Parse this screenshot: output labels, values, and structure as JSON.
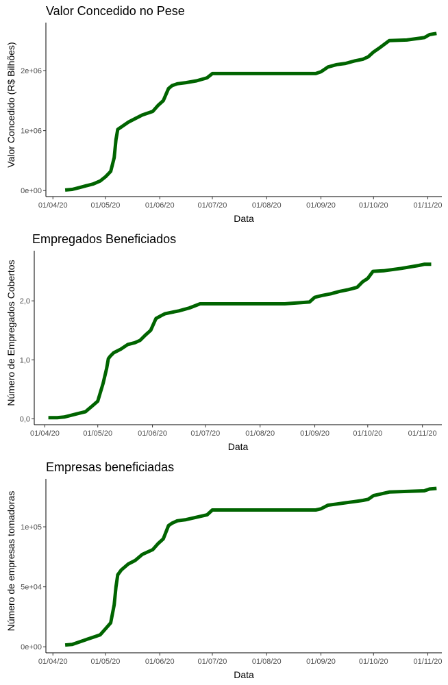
{
  "colors": {
    "line": "#006400",
    "axis": "#000000",
    "tick_text": "#4d4d4d"
  },
  "chart_data": [
    {
      "type": "line",
      "title": "Valor Concedido no Pese",
      "xlabel": "Data",
      "ylabel": "Valor Concedido (R$ Bilhões)",
      "xticks": [
        "01/04/20",
        "01/05/20",
        "01/06/20",
        "01/07/20",
        "01/08/20",
        "01/09/20",
        "01/10/20",
        "01/11/20"
      ],
      "xlim": [
        "2020-03-28",
        "2020-11-09"
      ],
      "yticks": [
        {
          "value": 0,
          "label": "0e+00"
        },
        {
          "value": 1000000,
          "label": "1e+06"
        },
        {
          "value": 2000000,
          "label": "2e+06"
        }
      ],
      "ylim": [
        -100000,
        2800000
      ],
      "grid": false,
      "series": [
        {
          "color": "#006400",
          "x": [
            "2020-04-08",
            "2020-04-12",
            "2020-04-16",
            "2020-04-20",
            "2020-04-24",
            "2020-04-28",
            "2020-05-01",
            "2020-05-04",
            "2020-05-06",
            "2020-05-07",
            "2020-05-08",
            "2020-05-10",
            "2020-05-14",
            "2020-05-18",
            "2020-05-22",
            "2020-05-25",
            "2020-05-28",
            "2020-05-31",
            "2020-06-03",
            "2020-06-06",
            "2020-06-08",
            "2020-06-11",
            "2020-06-16",
            "2020-06-22",
            "2020-06-28",
            "2020-07-01",
            "2020-07-15",
            "2020-08-01",
            "2020-08-15",
            "2020-08-29",
            "2020-09-01",
            "2020-09-05",
            "2020-09-10",
            "2020-09-15",
            "2020-09-20",
            "2020-09-25",
            "2020-09-28",
            "2020-10-01",
            "2020-10-04",
            "2020-10-10",
            "2020-10-20",
            "2020-10-30",
            "2020-11-02",
            "2020-11-06"
          ],
          "y": [
            10000,
            20000,
            50000,
            80000,
            110000,
            160000,
            230000,
            320000,
            550000,
            850000,
            1020000,
            1060000,
            1140000,
            1200000,
            1260000,
            1290000,
            1320000,
            1420000,
            1500000,
            1700000,
            1750000,
            1780000,
            1800000,
            1830000,
            1880000,
            1950000,
            1950000,
            1950000,
            1950000,
            1950000,
            1980000,
            2060000,
            2100000,
            2120000,
            2160000,
            2190000,
            2230000,
            2310000,
            2370000,
            2500000,
            2510000,
            2550000,
            2600000,
            2620000
          ]
        }
      ]
    },
    {
      "type": "line",
      "title": "Empregados Beneficiados",
      "xlabel": "Data",
      "ylabel": "Número de Empregados Cobertos",
      "xticks": [
        "01/04/20",
        "01/05/20",
        "01/06/20",
        "01/07/20",
        "01/08/20",
        "01/09/20",
        "01/10/20",
        "01/11/20"
      ],
      "xlim": [
        "2020-03-26",
        "2020-11-12"
      ],
      "yticks": [
        {
          "value": 0,
          "label": "0,0"
        },
        {
          "value": 1,
          "label": "1,0"
        },
        {
          "value": 2,
          "label": "2,0"
        }
      ],
      "ylim": [
        -0.1,
        2.85
      ],
      "grid": false,
      "series": [
        {
          "color": "#006400",
          "x": [
            "2020-04-03",
            "2020-04-08",
            "2020-04-12",
            "2020-04-16",
            "2020-04-20",
            "2020-04-24",
            "2020-04-28",
            "2020-05-01",
            "2020-05-04",
            "2020-05-06",
            "2020-05-07",
            "2020-05-08",
            "2020-05-10",
            "2020-05-14",
            "2020-05-18",
            "2020-05-22",
            "2020-05-25",
            "2020-05-28",
            "2020-05-31",
            "2020-06-03",
            "2020-06-06",
            "2020-06-08",
            "2020-06-11",
            "2020-06-16",
            "2020-06-22",
            "2020-06-28",
            "2020-07-01",
            "2020-07-15",
            "2020-08-01",
            "2020-08-15",
            "2020-08-29",
            "2020-09-01",
            "2020-09-05",
            "2020-09-10",
            "2020-09-15",
            "2020-09-20",
            "2020-09-25",
            "2020-09-28",
            "2020-10-01",
            "2020-10-04",
            "2020-10-10",
            "2020-10-20",
            "2020-10-30",
            "2020-11-02",
            "2020-11-06"
          ],
          "y": [
            0.02,
            0.02,
            0.03,
            0.06,
            0.09,
            0.12,
            0.22,
            0.3,
            0.6,
            0.85,
            1.02,
            1.06,
            1.12,
            1.18,
            1.26,
            1.29,
            1.33,
            1.42,
            1.5,
            1.7,
            1.75,
            1.78,
            1.8,
            1.83,
            1.88,
            1.95,
            1.95,
            1.95,
            1.95,
            1.95,
            1.98,
            2.06,
            2.09,
            2.12,
            2.16,
            2.19,
            2.23,
            2.32,
            2.38,
            2.5,
            2.51,
            2.55,
            2.6,
            2.62,
            2.62
          ]
        }
      ]
    },
    {
      "type": "line",
      "title": "Empresas beneficiadas",
      "xlabel": "Data",
      "ylabel": "Número de empresas tomadoras",
      "xticks": [
        "01/04/20",
        "01/05/20",
        "01/06/20",
        "01/07/20",
        "01/08/20",
        "01/09/20",
        "01/10/20",
        "01/11/20"
      ],
      "xlim": [
        "2020-03-28",
        "2020-11-09"
      ],
      "yticks": [
        {
          "value": 0,
          "label": "0e+00"
        },
        {
          "value": 50000,
          "label": "5e+04"
        },
        {
          "value": 100000,
          "label": "1e+05"
        }
      ],
      "ylim": [
        -5000,
        140000
      ],
      "grid": false,
      "series": [
        {
          "color": "#006400",
          "x": [
            "2020-04-08",
            "2020-04-12",
            "2020-04-16",
            "2020-04-20",
            "2020-04-24",
            "2020-04-28",
            "2020-05-01",
            "2020-05-04",
            "2020-05-06",
            "2020-05-07",
            "2020-05-08",
            "2020-05-10",
            "2020-05-14",
            "2020-05-18",
            "2020-05-22",
            "2020-05-25",
            "2020-05-28",
            "2020-05-31",
            "2020-06-03",
            "2020-06-06",
            "2020-06-08",
            "2020-06-11",
            "2020-06-16",
            "2020-06-22",
            "2020-06-28",
            "2020-07-01",
            "2020-07-15",
            "2020-08-01",
            "2020-08-15",
            "2020-08-29",
            "2020-09-01",
            "2020-09-05",
            "2020-09-10",
            "2020-09-15",
            "2020-09-20",
            "2020-09-25",
            "2020-09-28",
            "2020-10-01",
            "2020-10-04",
            "2020-10-10",
            "2020-10-20",
            "2020-10-30",
            "2020-11-02",
            "2020-11-06"
          ],
          "y": [
            1500,
            2000,
            4000,
            6000,
            8000,
            10000,
            15000,
            20000,
            35000,
            50000,
            60000,
            64000,
            69000,
            72000,
            77000,
            79000,
            81000,
            86000,
            90000,
            101000,
            103000,
            105000,
            106000,
            108000,
            110000,
            114000,
            114000,
            114000,
            114000,
            114000,
            115000,
            118000,
            119000,
            120000,
            121000,
            122000,
            123000,
            126000,
            127000,
            129000,
            129500,
            130000,
            131500,
            132000
          ]
        }
      ]
    }
  ]
}
